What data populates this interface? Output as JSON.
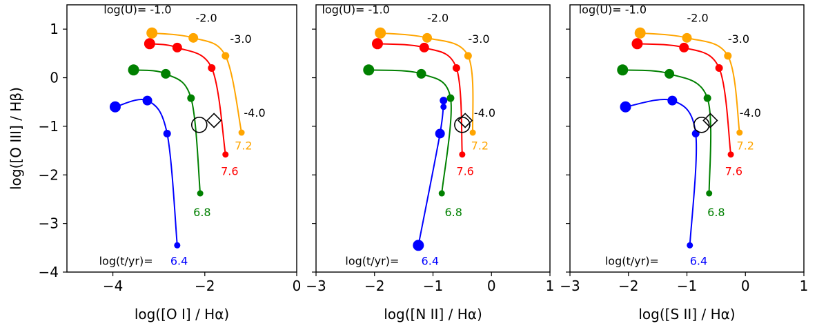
{
  "chart_data": [
    {
      "type": "line",
      "xlabel": "log([O I] / Hα)",
      "ylabel": "log([O III] / Hβ)",
      "xlim": [
        -5,
        0
      ],
      "ylim": [
        -4,
        1.5
      ],
      "xticks": [
        "−4",
        "−2",
        "0"
      ],
      "xtick_values": [
        -4,
        -2,
        0
      ],
      "yticks": [
        "−4",
        "−3",
        "−2",
        "−1",
        "0",
        "1"
      ],
      "ytick_values": [
        -4,
        -3,
        -2,
        -1,
        0,
        1
      ],
      "series": [
        {
          "name": "6.4",
          "color": "#0000ff",
          "points": [
            [
              -3.95,
              -0.6
            ],
            [
              -3.25,
              -0.47
            ],
            [
              -2.82,
              -1.15
            ],
            [
              -2.6,
              -3.45
            ]
          ]
        },
        {
          "name": "6.8",
          "color": "#008000",
          "points": [
            [
              -3.55,
              0.16
            ],
            [
              -2.85,
              0.08
            ],
            [
              -2.3,
              -0.42
            ],
            [
              -2.1,
              -2.38
            ]
          ]
        },
        {
          "name": "7.6",
          "color": "#ff0000",
          "points": [
            [
              -3.2,
              0.7
            ],
            [
              -2.6,
              0.62
            ],
            [
              -1.85,
              0.2
            ],
            [
              -1.55,
              -1.58
            ]
          ]
        },
        {
          "name": "7.2",
          "color": "#ffa500",
          "points": [
            [
              -3.15,
              0.92
            ],
            [
              -2.25,
              0.82
            ],
            [
              -1.55,
              0.45
            ],
            [
              -1.2,
              -1.13
            ]
          ]
        }
      ],
      "markers": [
        {
          "shape": "circle",
          "x": -2.12,
          "y": -0.97
        },
        {
          "shape": "diamond",
          "x": -1.8,
          "y": -0.88
        }
      ],
      "annotations": [
        {
          "text": "log(U)= -1.0",
          "x": -4.2,
          "y": 1.32,
          "color": "#000000"
        },
        {
          "text": "-2.0",
          "x": -2.2,
          "y": 1.15,
          "color": "#000000"
        },
        {
          "text": "-3.0",
          "x": -1.45,
          "y": 0.72,
          "color": "#000000"
        },
        {
          "text": "-4.0",
          "x": -1.15,
          "y": -0.8,
          "color": "#000000"
        },
        {
          "text": "7.2",
          "x": -1.35,
          "y": -1.48,
          "color": "#ffa500"
        },
        {
          "text": "7.6",
          "x": -1.65,
          "y": -2.0,
          "color": "#ff0000"
        },
        {
          "text": "6.8",
          "x": -2.25,
          "y": -2.85,
          "color": "#008000"
        },
        {
          "text": "log(t/yr)=",
          "x": -4.3,
          "y": -3.85,
          "color": "#000000"
        },
        {
          "text": "6.4",
          "x": -2.75,
          "y": -3.85,
          "color": "#0000ff"
        }
      ]
    },
    {
      "type": "line",
      "xlabel": "log([N II] / Hα)",
      "ylabel": "",
      "xlim": [
        -3,
        1
      ],
      "ylim": [
        -4,
        1.5
      ],
      "xticks": [
        "−3",
        "−2",
        "−1",
        "0",
        "1"
      ],
      "xtick_values": [
        -3,
        -2,
        -1,
        0,
        1
      ],
      "yticks": [],
      "ytick_values": [
        -4,
        -3,
        -2,
        -1,
        0,
        1
      ],
      "series": [
        {
          "name": "6.4",
          "color": "#0000ff",
          "points": [
            [
              -1.25,
              -3.45
            ],
            [
              -0.88,
              -1.15
            ],
            [
              -0.82,
              -0.47
            ],
            [
              -0.82,
              -0.6
            ]
          ]
        },
        {
          "name": "6.8",
          "color": "#008000",
          "points": [
            [
              -2.1,
              0.16
            ],
            [
              -1.2,
              0.08
            ],
            [
              -0.7,
              -0.42
            ],
            [
              -0.85,
              -2.38
            ]
          ]
        },
        {
          "name": "7.6",
          "color": "#ff0000",
          "points": [
            [
              -1.95,
              0.7
            ],
            [
              -1.15,
              0.62
            ],
            [
              -0.6,
              0.2
            ],
            [
              -0.5,
              -1.58
            ]
          ]
        },
        {
          "name": "7.2",
          "color": "#ffa500",
          "points": [
            [
              -1.9,
              0.92
            ],
            [
              -1.1,
              0.82
            ],
            [
              -0.4,
              0.45
            ],
            [
              -0.32,
              -1.13
            ]
          ]
        }
      ],
      "markers": [
        {
          "shape": "circle",
          "x": -0.5,
          "y": -0.97
        },
        {
          "shape": "diamond",
          "x": -0.45,
          "y": -0.88
        }
      ],
      "annotations": [
        {
          "text": "log(U)= -1.0",
          "x": -2.9,
          "y": 1.32,
          "color": "#000000"
        },
        {
          "text": "-2.0",
          "x": -1.1,
          "y": 1.15,
          "color": "#000000"
        },
        {
          "text": "-3.0",
          "x": -0.4,
          "y": 0.72,
          "color": "#000000"
        },
        {
          "text": "-4.0",
          "x": -0.3,
          "y": -0.8,
          "color": "#000000"
        },
        {
          "text": "7.2",
          "x": -0.35,
          "y": -1.48,
          "color": "#ffa500"
        },
        {
          "text": "7.6",
          "x": -0.6,
          "y": -2.0,
          "color": "#ff0000"
        },
        {
          "text": "6.8",
          "x": -0.8,
          "y": -2.85,
          "color": "#008000"
        },
        {
          "text": "log(t/yr)=",
          "x": -2.5,
          "y": -3.85,
          "color": "#000000"
        },
        {
          "text": "6.4",
          "x": -1.2,
          "y": -3.85,
          "color": "#0000ff"
        }
      ]
    },
    {
      "type": "line",
      "xlabel": "log([S II] / Hα)",
      "ylabel": "",
      "xlim": [
        -3,
        1
      ],
      "ylim": [
        -4,
        1.5
      ],
      "xticks": [
        "−3",
        "−2",
        "−1",
        "0",
        "1"
      ],
      "xtick_values": [
        -3,
        -2,
        -1,
        0,
        1
      ],
      "yticks": [],
      "ytick_values": [
        -4,
        -3,
        -2,
        -1,
        0,
        1
      ],
      "series": [
        {
          "name": "6.4",
          "color": "#0000ff",
          "points": [
            [
              -2.05,
              -0.6
            ],
            [
              -1.25,
              -0.47
            ],
            [
              -0.85,
              -1.15
            ],
            [
              -0.95,
              -3.45
            ]
          ]
        },
        {
          "name": "6.8",
          "color": "#008000",
          "points": [
            [
              -2.1,
              0.16
            ],
            [
              -1.3,
              0.08
            ],
            [
              -0.65,
              -0.42
            ],
            [
              -0.62,
              -2.38
            ]
          ]
        },
        {
          "name": "7.6",
          "color": "#ff0000",
          "points": [
            [
              -1.85,
              0.7
            ],
            [
              -1.05,
              0.62
            ],
            [
              -0.45,
              0.2
            ],
            [
              -0.25,
              -1.58
            ]
          ]
        },
        {
          "name": "7.2",
          "color": "#ffa500",
          "points": [
            [
              -1.8,
              0.92
            ],
            [
              -1.0,
              0.82
            ],
            [
              -0.3,
              0.45
            ],
            [
              -0.1,
              -1.13
            ]
          ]
        }
      ],
      "markers": [
        {
          "shape": "circle",
          "x": -0.75,
          "y": -0.97
        },
        {
          "shape": "diamond",
          "x": -0.6,
          "y": -0.88
        }
      ],
      "annotations": [
        {
          "text": "log(U)= -1.0",
          "x": -2.85,
          "y": 1.32,
          "color": "#000000"
        },
        {
          "text": "-2.0",
          "x": -1.0,
          "y": 1.15,
          "color": "#000000"
        },
        {
          "text": "-3.0",
          "x": -0.3,
          "y": 0.72,
          "color": "#000000"
        },
        {
          "text": "-4.0",
          "x": -0.1,
          "y": -0.8,
          "color": "#000000"
        },
        {
          "text": "7.2",
          "x": -0.15,
          "y": -1.48,
          "color": "#ffa500"
        },
        {
          "text": "7.6",
          "x": -0.35,
          "y": -2.0,
          "color": "#ff0000"
        },
        {
          "text": "6.8",
          "x": -0.65,
          "y": -2.85,
          "color": "#008000"
        },
        {
          "text": "log(t/yr)=",
          "x": -2.4,
          "y": -3.85,
          "color": "#000000"
        },
        {
          "text": "6.4",
          "x": -0.95,
          "y": -3.85,
          "color": "#0000ff"
        }
      ]
    }
  ]
}
